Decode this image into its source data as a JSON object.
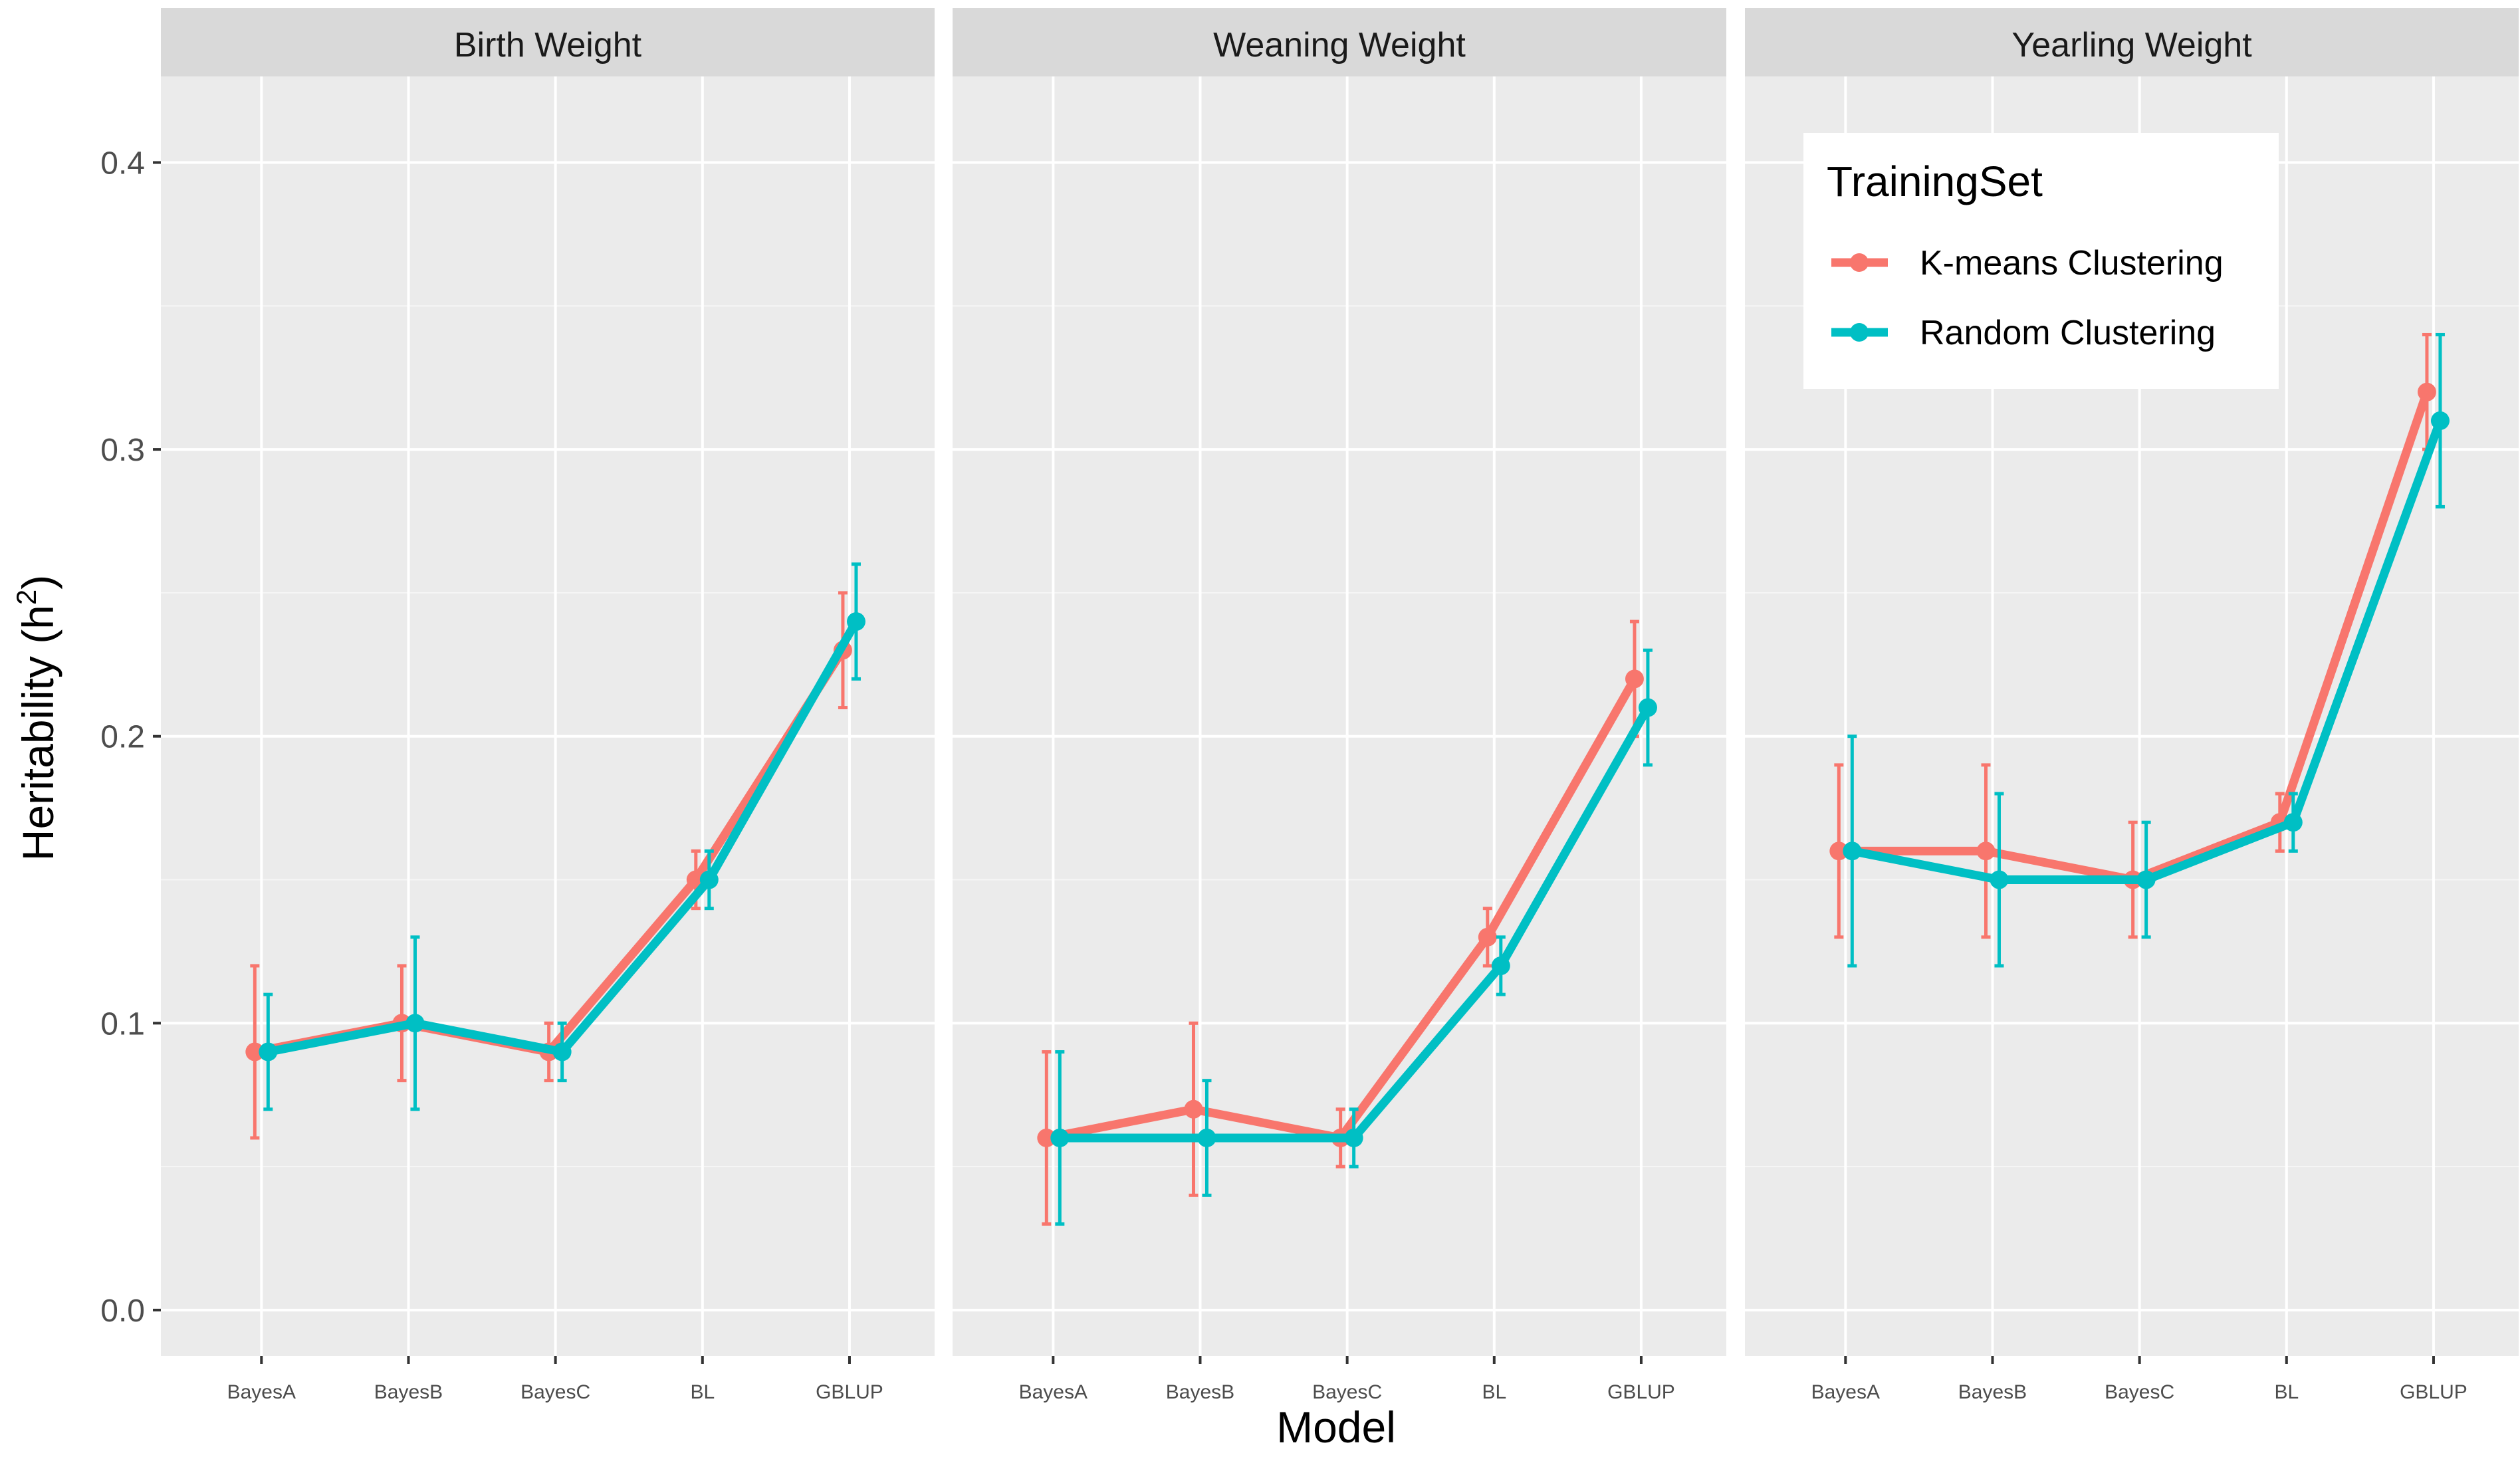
{
  "chart_data": {
    "type": "line",
    "facets": [
      "Birth Weight",
      "Weaning Weight",
      "Yearling Weight"
    ],
    "categories": [
      "BayesA",
      "BayesB",
      "BayesC",
      "BL",
      "GBLUP"
    ],
    "xlabel": "Model",
    "ylabel": "Heritability (h",
    "ylabel_superscript": "2",
    "ylabel_close": ")",
    "ylim": [
      -0.016,
      0.43
    ],
    "yticks": [
      0.0,
      0.1,
      0.2,
      0.3,
      0.4
    ],
    "ytick_labels": [
      "0.0",
      "0.1",
      "0.2",
      "0.3",
      "0.4"
    ],
    "grid": true,
    "legend": {
      "title": "TrainingSet",
      "position": "top-right of Yearling Weight panel"
    },
    "series": [
      {
        "name": "K-means Clustering",
        "color": "#F8766D",
        "panels": [
          {
            "values": [
              0.09,
              0.1,
              0.09,
              0.15,
              0.23
            ],
            "lower": [
              0.06,
              0.08,
              0.08,
              0.14,
              0.21
            ],
            "upper": [
              0.12,
              0.12,
              0.1,
              0.16,
              0.25
            ]
          },
          {
            "values": [
              0.06,
              0.07,
              0.06,
              0.13,
              0.22
            ],
            "lower": [
              0.03,
              0.04,
              0.05,
              0.12,
              0.2
            ],
            "upper": [
              0.09,
              0.1,
              0.07,
              0.14,
              0.24
            ]
          },
          {
            "values": [
              0.16,
              0.16,
              0.15,
              0.17,
              0.32
            ],
            "lower": [
              0.13,
              0.13,
              0.13,
              0.16,
              0.3
            ],
            "upper": [
              0.19,
              0.19,
              0.17,
              0.18,
              0.34
            ]
          }
        ]
      },
      {
        "name": "Random Clustering",
        "color": "#00BFC4",
        "panels": [
          {
            "values": [
              0.09,
              0.1,
              0.09,
              0.15,
              0.24
            ],
            "lower": [
              0.07,
              0.07,
              0.08,
              0.14,
              0.22
            ],
            "upper": [
              0.11,
              0.13,
              0.1,
              0.16,
              0.26
            ]
          },
          {
            "values": [
              0.06,
              0.06,
              0.06,
              0.12,
              0.21
            ],
            "lower": [
              0.03,
              0.04,
              0.05,
              0.11,
              0.19
            ],
            "upper": [
              0.09,
              0.08,
              0.07,
              0.13,
              0.23
            ]
          },
          {
            "values": [
              0.16,
              0.15,
              0.15,
              0.17,
              0.31
            ],
            "lower": [
              0.12,
              0.12,
              0.13,
              0.16,
              0.28
            ],
            "upper": [
              0.2,
              0.18,
              0.17,
              0.18,
              0.34
            ]
          }
        ]
      }
    ]
  }
}
